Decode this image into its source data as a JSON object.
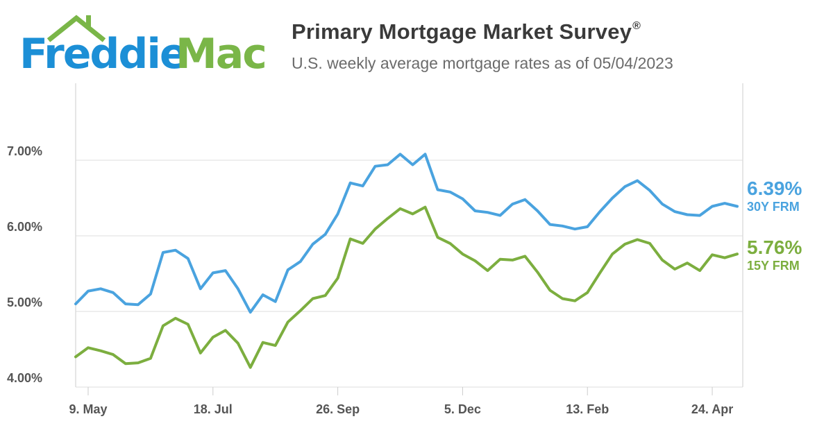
{
  "logo": {
    "text_part1": "Freddie",
    "text_part2": "Mac"
  },
  "header": {
    "title": "Primary Mortgage Market Survey",
    "title_mark": "®",
    "subtitle": "U.S. weekly average mortgage rates as of 05/04/2023"
  },
  "colors": {
    "blue": "#4aa3df",
    "green": "#7cae3f",
    "grid": "#dcdcdc",
    "axis_text": "#555555",
    "logo_blue": "#1c8fd6",
    "logo_green": "#7ab648"
  },
  "end_labels": {
    "frm30": {
      "value": "6.39%",
      "series": "30Y FRM"
    },
    "frm15": {
      "value": "5.76%",
      "series": "15Y FRM"
    }
  },
  "chart_data": {
    "type": "line",
    "title": "Primary Mortgage Market Survey",
    "subtitle": "U.S. weekly average mortgage rates as of 05/04/2023",
    "ylim": [
      4.0,
      7.0
    ],
    "grid": true,
    "y_ticks": [
      {
        "value": 4.0,
        "label": "4.00%"
      },
      {
        "value": 5.0,
        "label": "5.00%"
      },
      {
        "value": 6.0,
        "label": "6.00%"
      },
      {
        "value": 7.0,
        "label": "7.00%"
      }
    ],
    "x_ticks": [
      {
        "index": 1,
        "label": "9. May"
      },
      {
        "index": 11,
        "label": "18. Jul"
      },
      {
        "index": 21,
        "label": "26. Sep"
      },
      {
        "index": 31,
        "label": "5. Dec"
      },
      {
        "index": 41,
        "label": "13. Feb"
      },
      {
        "index": 51,
        "label": "24. Apr"
      }
    ],
    "series": [
      {
        "name": "30Y FRM",
        "color": "#4aa3df",
        "values": [
          5.1,
          5.27,
          5.3,
          5.25,
          5.1,
          5.09,
          5.23,
          5.78,
          5.81,
          5.7,
          5.3,
          5.51,
          5.54,
          5.3,
          4.99,
          5.22,
          5.13,
          5.55,
          5.66,
          5.89,
          6.02,
          6.29,
          6.7,
          6.66,
          6.92,
          6.94,
          7.08,
          6.94,
          7.08,
          6.61,
          6.58,
          6.49,
          6.33,
          6.31,
          6.27,
          6.42,
          6.48,
          6.33,
          6.15,
          6.13,
          6.09,
          6.12,
          6.32,
          6.5,
          6.65,
          6.73,
          6.6,
          6.42,
          6.32,
          6.28,
          6.27,
          6.39,
          6.43,
          6.39
        ]
      },
      {
        "name": "15Y FRM",
        "color": "#7cae3f",
        "values": [
          4.4,
          4.52,
          4.48,
          4.43,
          4.31,
          4.32,
          4.38,
          4.81,
          4.91,
          4.83,
          4.45,
          4.66,
          4.75,
          4.58,
          4.26,
          4.59,
          4.55,
          4.86,
          5.01,
          5.17,
          5.21,
          5.44,
          5.96,
          5.9,
          6.09,
          6.23,
          6.36,
          6.29,
          6.38,
          5.98,
          5.9,
          5.76,
          5.67,
          5.54,
          5.69,
          5.68,
          5.73,
          5.52,
          5.28,
          5.17,
          5.14,
          5.25,
          5.51,
          5.76,
          5.89,
          5.95,
          5.9,
          5.68,
          5.56,
          5.64,
          5.54,
          5.75,
          5.71,
          5.76
        ]
      }
    ]
  }
}
